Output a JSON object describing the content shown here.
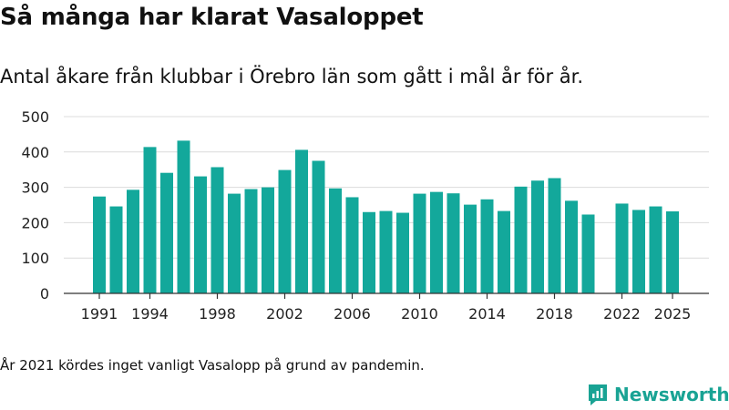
{
  "title": "Så många har klarat Vasaloppet",
  "subtitle": "Antal åkare från klubbar i Örebro län som gått i mål år för år.",
  "footnote": "År 2021 kördes inget vanligt Vasalopp på grund av pandemin.",
  "brand": {
    "name": "Newsworthy",
    "color": "#19a394"
  },
  "chart_data": {
    "type": "bar",
    "title": "Så många har klarat Vasaloppet",
    "xlabel": "",
    "ylabel": "",
    "ylim": [
      0,
      500
    ],
    "yticks": [
      0,
      100,
      200,
      300,
      400,
      500
    ],
    "xticks": [
      "1991",
      "1994",
      "1998",
      "2002",
      "2006",
      "2010",
      "2014",
      "2018",
      "2022",
      "2025"
    ],
    "grid": true,
    "bar_color": "#13a89b",
    "categories": [
      "1991",
      "1992",
      "1993",
      "1994",
      "1995",
      "1996",
      "1997",
      "1998",
      "1999",
      "2000",
      "2001",
      "2002",
      "2003",
      "2004",
      "2005",
      "2006",
      "2007",
      "2008",
      "2009",
      "2010",
      "2011",
      "2012",
      "2013",
      "2014",
      "2015",
      "2016",
      "2017",
      "2018",
      "2019",
      "2020",
      "2021",
      "2022",
      "2023",
      "2024",
      "2025"
    ],
    "values": [
      274,
      246,
      293,
      414,
      341,
      432,
      331,
      357,
      282,
      295,
      300,
      349,
      406,
      375,
      297,
      272,
      230,
      233,
      228,
      282,
      287,
      283,
      251,
      266,
      233,
      302,
      319,
      326,
      262,
      223,
      null,
      254,
      236,
      246,
      232
    ]
  }
}
